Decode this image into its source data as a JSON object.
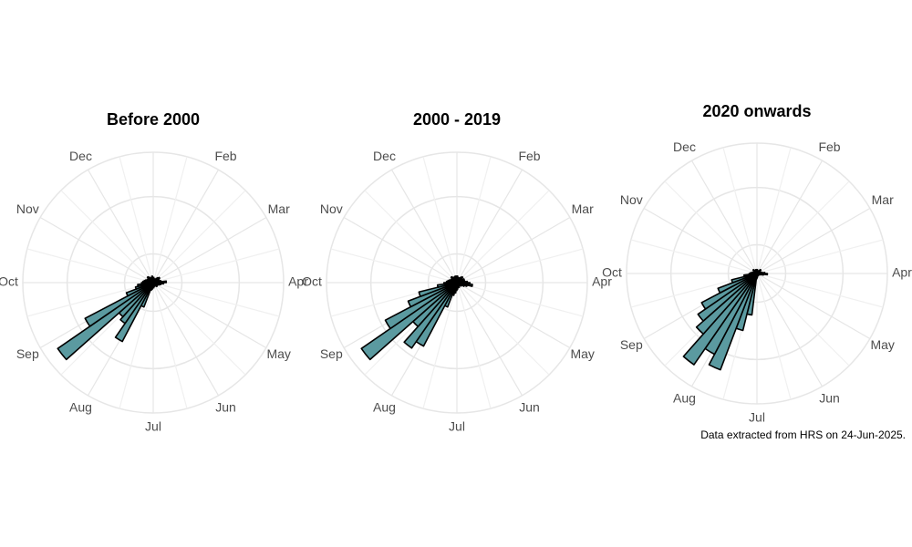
{
  "chart_data": [
    {
      "type": "polar-bar",
      "title": "Before 2000",
      "month_labels": [
        null,
        "Feb",
        "Mar",
        "Apr",
        "May",
        "Jun",
        "Jul",
        "Aug",
        "Sep",
        "Oct",
        "Nov",
        "Dec"
      ],
      "values": [
        4,
        3,
        3,
        2,
        3,
        4,
        5,
        6,
        4,
        5,
        3,
        6,
        10,
        8,
        6,
        5,
        4,
        3,
        3,
        4,
        3,
        2,
        3,
        2,
        3,
        4,
        3,
        5,
        6,
        20,
        51,
        38,
        35,
        89,
        59,
        22,
        14,
        12,
        9,
        8,
        7,
        6,
        5,
        5,
        4,
        6,
        5,
        4,
        3,
        4,
        5,
        3
      ],
      "rlim": [
        0,
        100
      ],
      "color": "#5b9aa0"
    },
    {
      "type": "polar-bar",
      "title": "2000 - 2019",
      "month_labels": [
        null,
        "Feb",
        "Mar",
        "Apr",
        "May",
        "Jun",
        "Jul",
        "Aug",
        "Sep",
        "Oct",
        "Nov",
        "Dec"
      ],
      "values": [
        5,
        4,
        4,
        3,
        4,
        5,
        6,
        5,
        4,
        6,
        5,
        6,
        8,
        10,
        12,
        8,
        6,
        4,
        4,
        3,
        3,
        3,
        4,
        3,
        4,
        5,
        6,
        8,
        10,
        20,
        55,
        61,
        45,
        89,
        62,
        40,
        30,
        15,
        10,
        8,
        7,
        6,
        5,
        5,
        4,
        6,
        5,
        4,
        4,
        5,
        5,
        4
      ],
      "rlim": [
        0,
        100
      ],
      "color": "#5b9aa0"
    },
    {
      "type": "polar-bar",
      "title": "2020 onwards",
      "month_labels": [
        null,
        "Feb",
        "Mar",
        "Apr",
        "May",
        "Jun",
        "Jul",
        "Aug",
        "Sep",
        "Oct",
        "Nov",
        "Dec"
      ],
      "values": [
        3,
        2,
        2,
        1,
        2,
        3,
        4,
        3,
        2,
        3,
        2,
        4,
        6,
        8,
        5,
        3,
        2,
        2,
        1,
        1,
        1,
        1,
        2,
        1,
        2,
        3,
        4,
        32,
        45,
        79,
        70,
        85,
        62,
        55,
        48,
        32,
        20,
        10,
        6,
        5,
        4,
        3,
        3,
        2,
        3,
        4,
        3,
        2,
        2,
        3,
        3,
        2
      ],
      "rlim": [
        0,
        100
      ],
      "color": "#5b9aa0"
    }
  ],
  "footnote": "Data extracted from HRS on 24-Jun-2025."
}
